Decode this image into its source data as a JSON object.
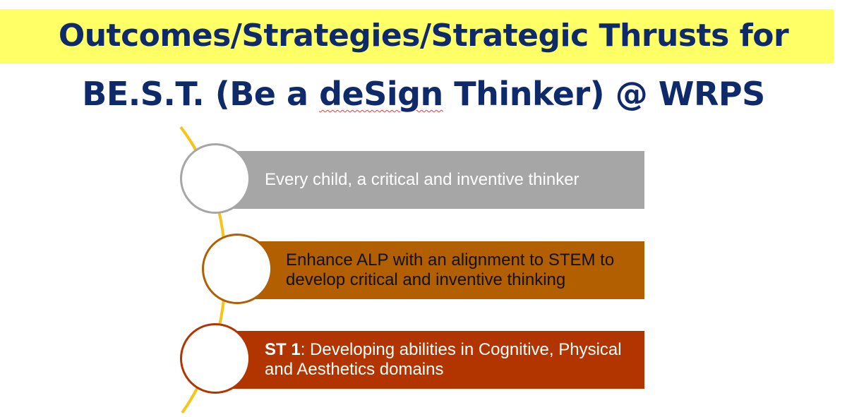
{
  "title": {
    "line1": "Outcomes/Strategies/Strategic Thrusts for",
    "line2_prefix": "BE.S.T. (Be a ",
    "line2_marked": "deSign",
    "line2_suffix": " Thinker) @ WRPS"
  },
  "items": [
    {
      "text": "Every child, a critical and inventive thinker",
      "color": "#a6a6a6"
    },
    {
      "text": "Enhance ALP with an alignment to STEM to develop critical and inventive thinking",
      "color": "#b15f00"
    },
    {
      "bold": "ST 1",
      "text": ": Developing abilities in Cognitive, Physical and Aesthetics domains",
      "color": "#b23500"
    }
  ],
  "colors": {
    "band": "#ffff66",
    "title_text": "#0f2a6b",
    "arc": "#f5c518"
  }
}
